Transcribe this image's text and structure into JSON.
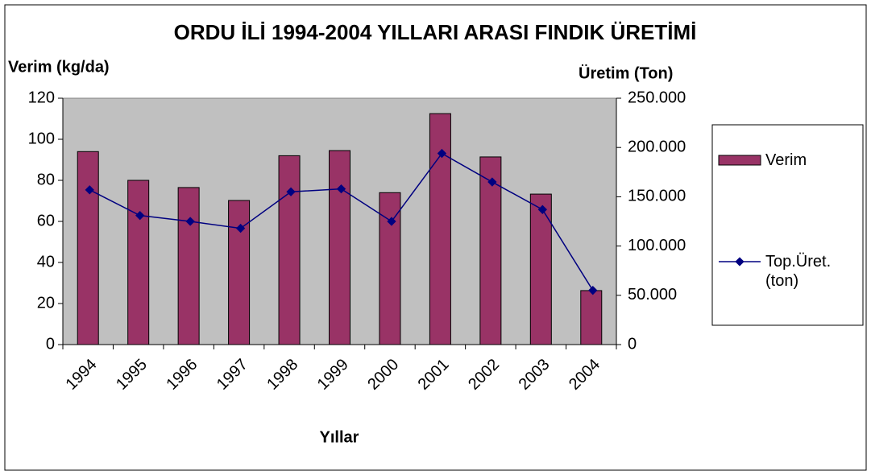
{
  "chart_data": {
    "type": "bar_line",
    "title": "ORDU İLİ 1994-2004 YILLARI ARASI FINDIK ÜRETİMİ",
    "ylabel": "Verim (kg/da)",
    "y2label": "Üretim (Ton)",
    "xlabel": "Yıllar",
    "categories": [
      "1994",
      "1995",
      "1996",
      "1997",
      "1998",
      "1999",
      "2000",
      "2001",
      "2002",
      "2003",
      "2004"
    ],
    "series": [
      {
        "name": "Verim",
        "type": "bar",
        "color": "#993366",
        "values": [
          94,
          80,
          76.5,
          70.2,
          92,
          94.5,
          74,
          112.5,
          91.4,
          73.3,
          26.3
        ]
      },
      {
        "name": "Top.Üret. (ton)",
        "type": "line",
        "axis": "y2",
        "color": "#000080",
        "values": [
          157000,
          131000,
          125000,
          118000,
          155000,
          158000,
          125000,
          194000,
          165000,
          137000,
          55000
        ]
      }
    ],
    "ylim": [
      0,
      120
    ],
    "yticks": [
      0,
      20,
      40,
      60,
      80,
      100,
      120
    ],
    "y2lim": [
      0,
      250000
    ],
    "y2ticks": [
      0,
      {
        "value": 50000,
        "label": "50.000"
      },
      {
        "value": 100000,
        "label": "100.000"
      },
      {
        "value": 150000,
        "label": "150.000"
      },
      {
        "value": 200000,
        "label": "200.000"
      },
      {
        "value": 250000,
        "label": "250.000"
      }
    ],
    "plot_background": "#c0c0c0",
    "legend": "right"
  }
}
